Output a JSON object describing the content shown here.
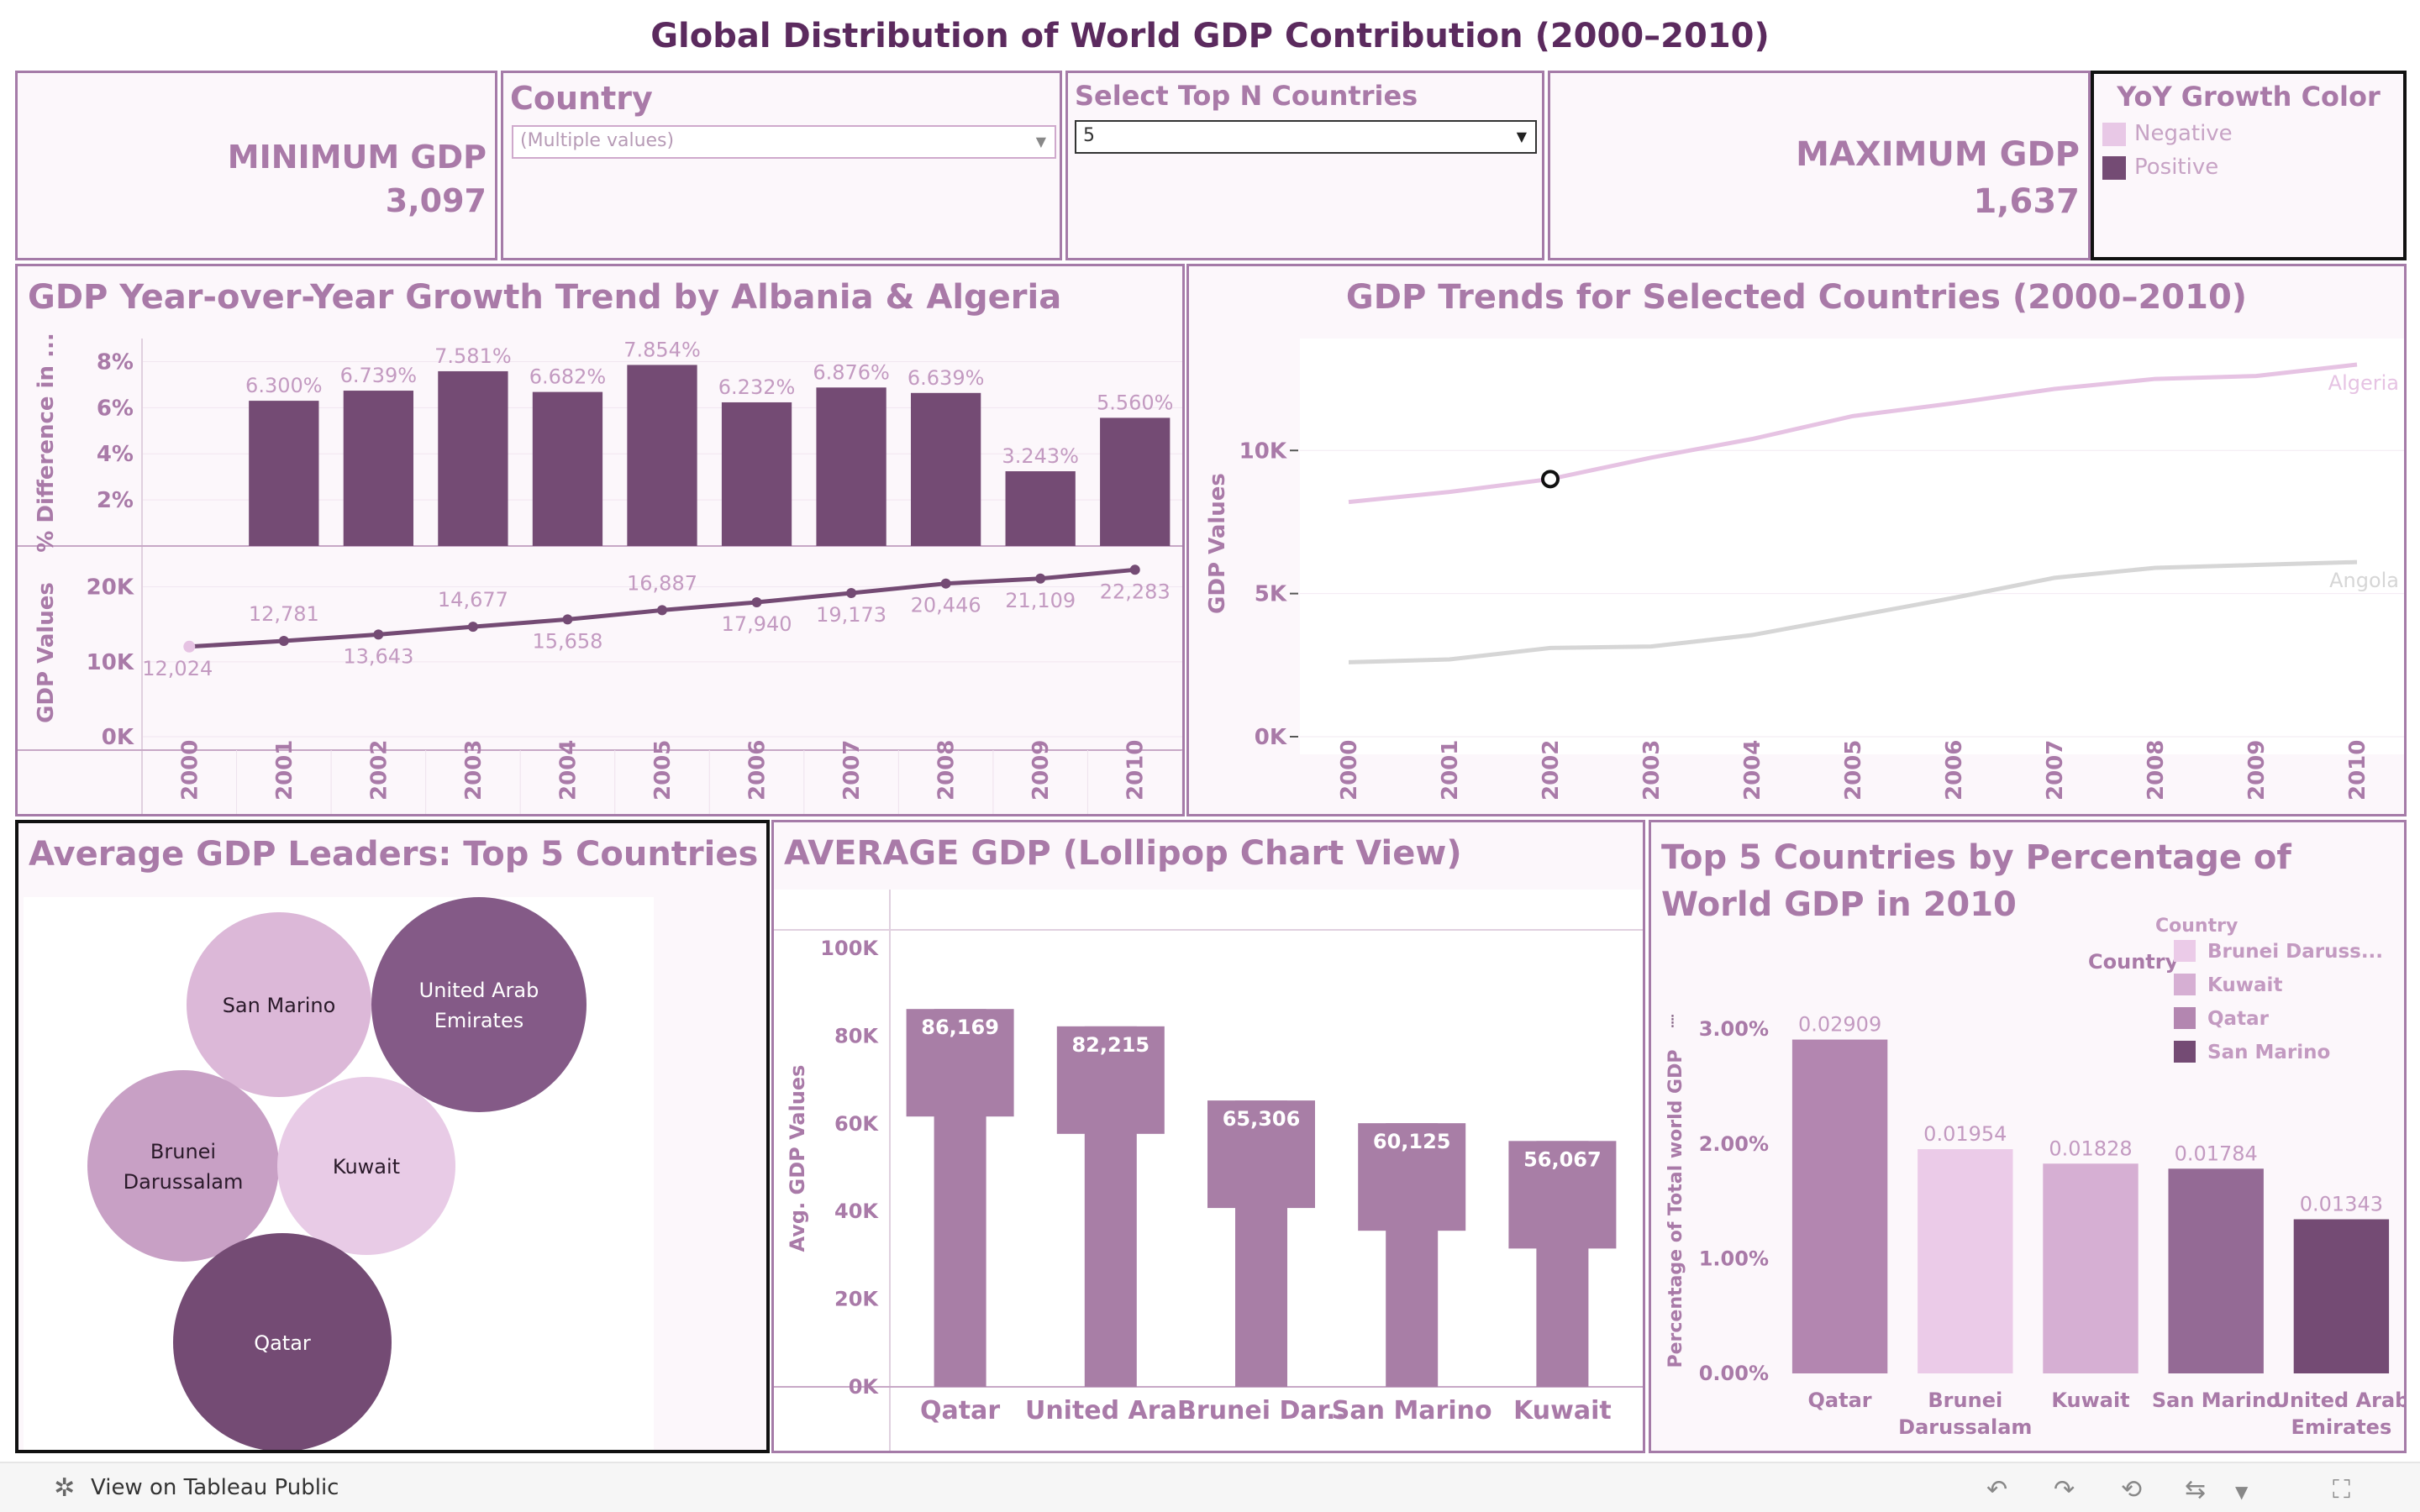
{
  "dashboard": {
    "title": "Global Distribution of World GDP Contribution (2000–2010)"
  },
  "kpi_min": {
    "label": "MINIMUM GDP",
    "value": "3,097"
  },
  "kpi_max": {
    "label": "MAXIMUM GDP",
    "value": "1,637"
  },
  "filter_country": {
    "title": "Country",
    "value": "(Multiple values)"
  },
  "filter_topn": {
    "title": "Select Top N Countries",
    "value": "5"
  },
  "yoy_legend": {
    "title": "YoY Growth Color",
    "items": [
      {
        "label": "Negative",
        "color": "#e8c8e6"
      },
      {
        "label": "Positive",
        "color": "#744b74"
      }
    ]
  },
  "footer": {
    "view_label": "View on Tableau Public"
  },
  "chart_data": [
    {
      "type": "bar",
      "title": "GDP Year-over-Year Growth Trend by Albania & Algeria",
      "ylabel": "% Difference in ...",
      "categories": [
        "2000",
        "2001",
        "2002",
        "2003",
        "2004",
        "2005",
        "2006",
        "2007",
        "2008",
        "2009",
        "2010"
      ],
      "values": [
        null,
        6.3,
        6.739,
        7.581,
        6.682,
        7.854,
        6.232,
        6.876,
        6.639,
        3.243,
        5.56
      ],
      "labels": [
        "",
        "6.300%",
        "6.739%",
        "7.581%",
        "6.682%",
        "7.854%",
        "6.232%",
        "6.876%",
        "6.639%",
        "3.243%",
        "5.560%"
      ],
      "yticks": [
        "2%",
        "4%",
        "6%",
        "8%"
      ],
      "ylim": [
        0,
        9
      ],
      "color": "#744b74"
    },
    {
      "type": "line",
      "ylabel": "GDP Values",
      "categories": [
        "2000",
        "2001",
        "2002",
        "2003",
        "2004",
        "2005",
        "2006",
        "2007",
        "2008",
        "2009",
        "2010"
      ],
      "values": [
        12024,
        12781,
        13643,
        14677,
        15658,
        16887,
        17940,
        19173,
        20446,
        21109,
        22283
      ],
      "labels": [
        "12,024",
        "12,781",
        "13,643",
        "14,677",
        "15,658",
        "16,887",
        "17,940",
        "19,173",
        "20,446",
        "21,109",
        "22,283"
      ],
      "yticks": [
        "0K",
        "10K",
        "20K"
      ],
      "ylim": [
        0,
        24000
      ],
      "color": "#744b74"
    },
    {
      "type": "line",
      "title": "GDP Trends for Selected Countries (2000–2010)",
      "ylabel": "GDP Values",
      "categories": [
        "2000",
        "2001",
        "2002",
        "2003",
        "2004",
        "2005",
        "2006",
        "2007",
        "2008",
        "2009",
        "2010"
      ],
      "yticks": [
        "0K",
        "5K",
        "10K"
      ],
      "ylim": [
        0,
        13500
      ],
      "series": [
        {
          "name": "Algeria",
          "values": [
            8200,
            8550,
            9000,
            9750,
            10400,
            11200,
            11650,
            12150,
            12500,
            12600,
            13000
          ],
          "color": "#e6c3e3"
        },
        {
          "name": "Angola",
          "values": [
            2600,
            2700,
            3100,
            3150,
            3550,
            4200,
            4850,
            5550,
            5900,
            6000,
            6100
          ],
          "color": "#d6d6d6"
        }
      ],
      "highlight": {
        "x": "2002",
        "y": 9000
      }
    },
    {
      "type": "bubble",
      "title": "Average GDP Leaders: Top 5 Countries",
      "items": [
        {
          "label": "San Marino",
          "color": "#dcb8d8"
        },
        {
          "label": "United Arab Emirates",
          "color": "#845a87"
        },
        {
          "label": "Brunei Darussalam",
          "color": "#c8a0c5"
        },
        {
          "label": "Kuwait",
          "color": "#e8cbe6"
        },
        {
          "label": "Qatar",
          "color": "#744b74"
        }
      ]
    },
    {
      "type": "bar",
      "title": "AVERAGE GDP (Lollipop Chart View)",
      "ylabel": "Avg. GDP Values",
      "categories": [
        "Qatar",
        "United Ara..",
        "Brunei Dar..",
        "San Marino",
        "Kuwait"
      ],
      "values": [
        86169,
        82215,
        65306,
        60125,
        56067
      ],
      "labels": [
        "86,169",
        "82,215",
        "65,306",
        "60,125",
        "56,067"
      ],
      "yticks": [
        "0K",
        "20K",
        "40K",
        "60K",
        "80K",
        "100K"
      ],
      "ylim": [
        0,
        100000
      ],
      "color": "#a87ea6"
    },
    {
      "type": "bar",
      "title": "Top 5 Countries by Percentage of World GDP in 2010",
      "ylabel": "Percentage of Total world GDP",
      "categories": [
        "Qatar",
        "Brunei Darussalam",
        "Kuwait",
        "San Marino",
        "United Arab Emirates"
      ],
      "values": [
        0.02909,
        0.01954,
        0.01828,
        0.01784,
        0.01343
      ],
      "labels": [
        "0.02909",
        "0.01954",
        "0.01828",
        "0.01784",
        "0.01343"
      ],
      "colors": [
        "#b386b0",
        "#ebcbe8",
        "#d6afd3",
        "#946a95",
        "#744b74"
      ],
      "yticks": [
        "0.00%",
        "1.00%",
        "2.00%",
        "3.00%"
      ],
      "ylim": [
        0,
        0.0325
      ],
      "legend": {
        "title": "Country",
        "items": [
          {
            "label": "Brunei Daruss...",
            "color": "#ebcbe8"
          },
          {
            "label": "Kuwait",
            "color": "#d6afd3"
          },
          {
            "label": "Qatar",
            "color": "#b386b0"
          },
          {
            "label": "San Marino",
            "color": "#744b74"
          }
        ]
      }
    }
  ]
}
